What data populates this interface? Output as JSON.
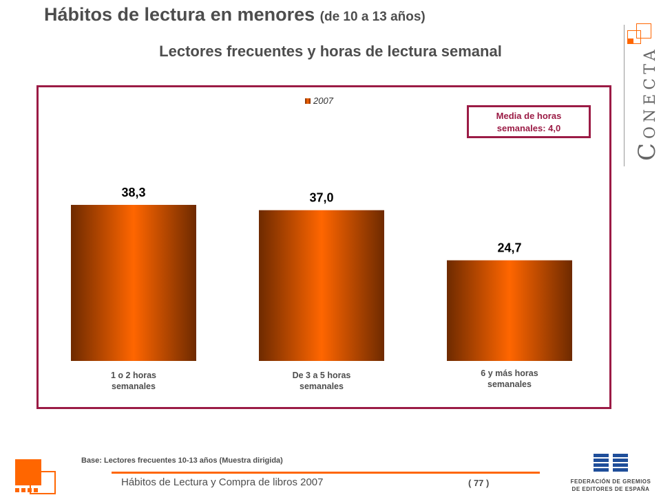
{
  "header": {
    "title_main": "Hábitos de lectura en menores",
    "title_sub": "(de 10 a 13 años)",
    "subtitle": "Lectores frecuentes y horas de lectura semanal"
  },
  "chart_data": {
    "type": "bar",
    "title": "Lectores frecuentes y horas de lectura semanal",
    "categories": [
      "1 o 2 horas\nsemanales",
      "De 3 a 5 horas\nsemanales",
      "6 y más horas\nsemanales"
    ],
    "categories_display": [
      [
        "1 o 2 horas",
        "semanales"
      ],
      [
        "De 3 a 5 horas",
        "semanales"
      ],
      [
        "6 y más horas",
        "semanales"
      ]
    ],
    "series": [
      {
        "name": "2007",
        "values": [
          38.3,
          37.0,
          24.7
        ],
        "labels": [
          "38,3",
          "37,0",
          "24,7"
        ]
      }
    ],
    "ylim": [
      0,
      50
    ],
    "legend": "top-center",
    "grid": false,
    "colors": {
      "bar_edge": "#6e2a00",
      "bar_center": "#ff6600"
    }
  },
  "annotation": {
    "line1": "Media de horas",
    "line2": "semanales: 4,0"
  },
  "brand": {
    "letters_big": "C",
    "letters_rest": "ONECTA"
  },
  "footer": {
    "base_note": "Base: Lectores frecuentes 10-13 años (Muestra dirigida)",
    "doc_title": "Hábitos de Lectura y Compra de libros 2007",
    "page_number": "( 77 )",
    "org_line1": "FEDERACIÓN DE GREMIOS",
    "org_line2": "DE EDITORES DE ESPAÑA"
  },
  "colors": {
    "accent": "#ff6600",
    "frame": "#9b1b45",
    "text": "#4d4d4d"
  }
}
